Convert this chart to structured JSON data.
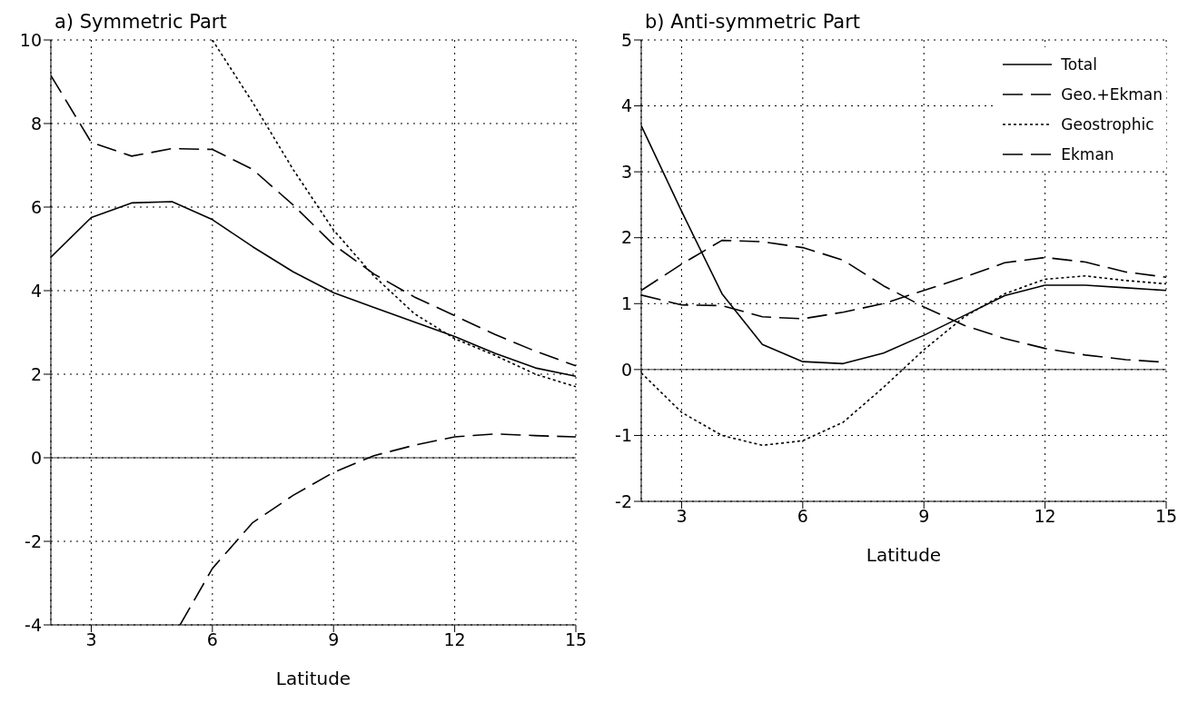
{
  "chart_data": [
    {
      "type": "line",
      "title": "a) Symmetric Part",
      "xlabel": "Latitude",
      "x": [
        2,
        3,
        4,
        5,
        6,
        7,
        8,
        9,
        10,
        11,
        12,
        13,
        14,
        15
      ],
      "xlim": [
        2,
        15
      ],
      "xticks": [
        3,
        6,
        9,
        12,
        15
      ],
      "ylim": [
        -4,
        10
      ],
      "yticks": [
        -4,
        -2,
        0,
        2,
        4,
        6,
        8,
        10
      ],
      "grid": true,
      "legend": false,
      "marker": "none",
      "ref_lines": [
        {
          "axis": "y",
          "value": 0,
          "color": "#000000",
          "line_style": "solid"
        }
      ],
      "series": [
        {
          "color": "#000000",
          "line_style": "solid",
          "values": [
            4.8,
            5.75,
            6.1,
            6.13,
            5.7,
            5.05,
            4.45,
            3.95,
            3.6,
            3.25,
            2.9,
            2.5,
            2.15,
            1.95
          ]
        },
        {
          "color": "#000000",
          "line_style": "dashed",
          "values": [
            9.15,
            7.55,
            7.22,
            7.4,
            7.38,
            6.9,
            6.05,
            5.1,
            4.4,
            3.85,
            3.4,
            2.95,
            2.55,
            2.2
          ]
        },
        {
          "color": "#000000",
          "line_style": "dotted",
          "values": [
            null,
            null,
            null,
            null,
            10,
            8.5,
            6.9,
            5.45,
            4.35,
            3.45,
            2.85,
            2.45,
            2.0,
            1.7
          ]
        },
        {
          "color": "#000000",
          "line_style": "dashed",
          "x": [
            5.2,
            6,
            7,
            8,
            9,
            10,
            11,
            12,
            13,
            14,
            15
          ],
          "values": [
            -4,
            -2.65,
            -1.55,
            -0.9,
            -0.35,
            0.05,
            0.3,
            0.5,
            0.57,
            0.53,
            0.5
          ]
        }
      ]
    },
    {
      "type": "line",
      "title": "b) Anti-symmetric Part",
      "xlabel": "Latitude",
      "x": [
        2,
        3,
        4,
        5,
        6,
        7,
        8,
        9,
        10,
        11,
        12,
        13,
        14,
        15
      ],
      "xlim": [
        2,
        15
      ],
      "xticks": [
        3,
        6,
        9,
        12,
        15
      ],
      "ylim": [
        -2,
        5
      ],
      "yticks": [
        -2,
        -1,
        0,
        1,
        2,
        3,
        4,
        5
      ],
      "grid": true,
      "legend": "top right",
      "marker": "none",
      "ref_lines": [
        {
          "axis": "y",
          "value": 0,
          "color": "#000000",
          "line_style": "solid"
        }
      ],
      "series": [
        {
          "name": "Total",
          "color": "#000000",
          "line_style": "solid",
          "values": [
            3.7,
            2.4,
            1.15,
            0.38,
            0.12,
            0.09,
            0.25,
            0.52,
            0.82,
            1.12,
            1.28,
            1.28,
            1.24,
            1.2
          ]
        },
        {
          "name": "Geo.+Ekman",
          "color": "#000000",
          "line_style": "dashed",
          "values": [
            1.13,
            0.98,
            0.97,
            0.8,
            0.77,
            0.87,
            1.0,
            1.2,
            1.4,
            1.62,
            1.7,
            1.63,
            1.48,
            1.4
          ]
        },
        {
          "name": "Geostrophic",
          "color": "#000000",
          "line_style": "dotted",
          "values": [
            -0.05,
            -0.65,
            -1.0,
            -1.15,
            -1.08,
            -0.8,
            -0.27,
            0.3,
            0.8,
            1.15,
            1.37,
            1.42,
            1.35,
            1.3
          ]
        },
        {
          "name": "Ekman",
          "color": "#000000",
          "line_style": "dashed",
          "values": [
            1.2,
            1.6,
            1.96,
            1.94,
            1.85,
            1.66,
            1.27,
            0.95,
            0.67,
            0.47,
            0.32,
            0.22,
            0.15,
            0.11
          ]
        }
      ]
    }
  ]
}
